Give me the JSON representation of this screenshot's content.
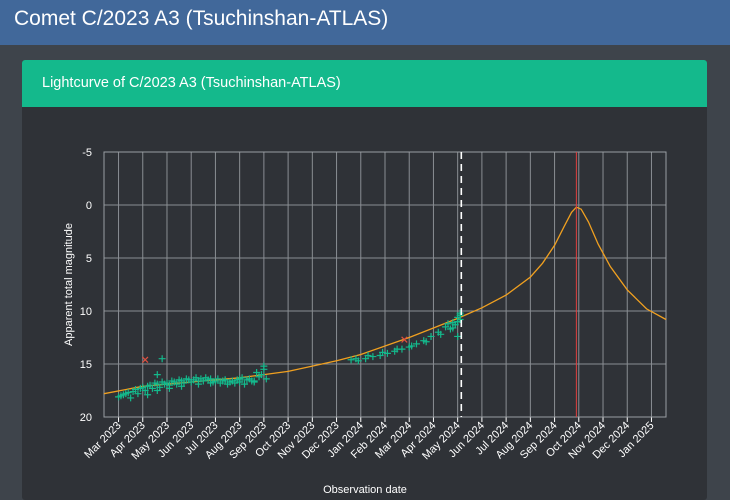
{
  "header": {
    "title": "Comet C/2023 A3 (Tsuchinshan-ATLAS)"
  },
  "card": {
    "title": "Lightcurve of C/2023 A3 (Tsuchinshan-ATLAS)"
  },
  "colors": {
    "observation": "#14b98c",
    "rejected": "#e05040",
    "model": "#f0a020",
    "perihelion_line": "#e04040",
    "today_line": "#ffffff",
    "grid": "#8a8e93"
  },
  "chart_data": {
    "type": "scatter",
    "xlabel": "Observation date",
    "ylabel": "Apparent total magnitude",
    "ylim": [
      20,
      -5
    ],
    "y_inverted": true,
    "y_ticks": [
      -5,
      0,
      5,
      10,
      15,
      20
    ],
    "x_ticks": [
      "Mar 2023",
      "Apr 2023",
      "May 2023",
      "Jun 2023",
      "Jul 2023",
      "Aug 2023",
      "Sep 2023",
      "Oct 2023",
      "Nov 2023",
      "Dec 2023",
      "Jan 2024",
      "Feb 2024",
      "Mar 2024",
      "Apr 2024",
      "May 2024",
      "Jun 2024",
      "Jul 2024",
      "Aug 2024",
      "Sep 2024",
      "Oct 2024",
      "Nov 2024",
      "Dec 2024",
      "Jan 2025"
    ],
    "grid": true,
    "x_range_months": [
      -0.6,
      22.6
    ],
    "today_marker_month": 14.15,
    "perihelion_marker_month": 18.9,
    "model_curve": {
      "month": [
        -0.6,
        1,
        2,
        3,
        4,
        5,
        6,
        7,
        8,
        9,
        10,
        11,
        12,
        13,
        14,
        15,
        16,
        17,
        17.5,
        18,
        18.4,
        18.7,
        18.9,
        19.1,
        19.4,
        19.8,
        20.3,
        21,
        21.8,
        22.6
      ],
      "magnitude": [
        17.8,
        17.1,
        16.9,
        16.7,
        16.5,
        16.3,
        16.0,
        15.7,
        15.2,
        14.7,
        14.1,
        13.3,
        12.5,
        11.6,
        10.7,
        9.7,
        8.5,
        6.8,
        5.5,
        3.8,
        2.0,
        0.7,
        0.2,
        0.4,
        1.6,
        3.7,
        5.8,
        8.0,
        9.8,
        10.8
      ]
    },
    "observations": {
      "month": [
        0.0,
        0.1,
        0.2,
        0.3,
        0.4,
        0.5,
        0.6,
        0.7,
        0.8,
        0.9,
        1.0,
        1.1,
        1.2,
        1.3,
        1.4,
        1.5,
        1.6,
        1.7,
        1.8,
        1.9,
        2.0,
        2.1,
        2.2,
        2.3,
        2.4,
        2.5,
        2.6,
        2.7,
        2.8,
        2.9,
        3.0,
        3.1,
        3.2,
        3.3,
        3.4,
        3.5,
        3.6,
        3.7,
        3.8,
        3.9,
        4.0,
        4.1,
        4.2,
        4.3,
        4.4,
        4.5,
        4.6,
        4.7,
        4.8,
        4.9,
        5.0,
        5.1,
        5.2,
        5.3,
        5.4,
        5.5,
        5.6,
        5.7,
        5.8,
        5.9,
        6.0,
        6.1,
        1.2,
        1.6,
        2.1,
        2.6,
        3.3,
        3.8,
        4.4,
        5.0,
        5.6,
        9.6,
        9.9,
        10.2,
        10.5,
        10.8,
        11.1,
        11.4,
        11.7,
        12.0,
        12.3,
        12.6,
        12.9,
        13.2,
        13.5,
        13.8,
        14.0,
        14.1,
        9.8,
        10.3,
        10.9,
        11.5,
        12.1,
        12.7,
        13.3,
        13.7,
        13.9,
        14.0,
        14.1,
        14.1,
        13.6,
        13.8,
        14.0,
        1.8,
        1.6,
        6.0
      ],
      "magnitude": [
        18.1,
        18.0,
        17.9,
        17.8,
        17.7,
        18.2,
        17.6,
        17.4,
        17.8,
        17.3,
        17.2,
        17.5,
        17.1,
        17.0,
        17.3,
        16.8,
        16.9,
        17.2,
        16.7,
        16.9,
        16.8,
        17.0,
        16.6,
        16.7,
        16.9,
        16.5,
        16.6,
        16.8,
        16.4,
        16.5,
        16.7,
        16.5,
        16.3,
        16.6,
        16.4,
        16.6,
        16.3,
        16.5,
        16.4,
        16.7,
        16.6,
        16.4,
        16.8,
        16.6,
        16.5,
        16.9,
        16.7,
        16.6,
        16.8,
        16.5,
        16.7,
        16.3,
        16.9,
        16.5,
        16.4,
        16.6,
        16.7,
        15.8,
        16.2,
        16.0,
        15.5,
        16.4,
        17.9,
        17.5,
        17.3,
        17.1,
        16.9,
        16.8,
        16.5,
        16.4,
        16.6,
        14.6,
        14.7,
        14.5,
        14.3,
        14.2,
        14.0,
        13.8,
        13.6,
        13.4,
        13.1,
        12.8,
        12.4,
        12.0,
        11.5,
        11.1,
        10.6,
        10.4,
        14.5,
        14.2,
        13.9,
        13.6,
        13.3,
        12.9,
        12.2,
        11.7,
        11.3,
        11.0,
        10.8,
        10.2,
        11.2,
        11.6,
        12.4,
        14.5,
        16.0,
        15.2
      ]
    },
    "rejected_observations": {
      "month": [
        1.1,
        11.8
      ],
      "magnitude": [
        14.6,
        12.7
      ]
    }
  }
}
